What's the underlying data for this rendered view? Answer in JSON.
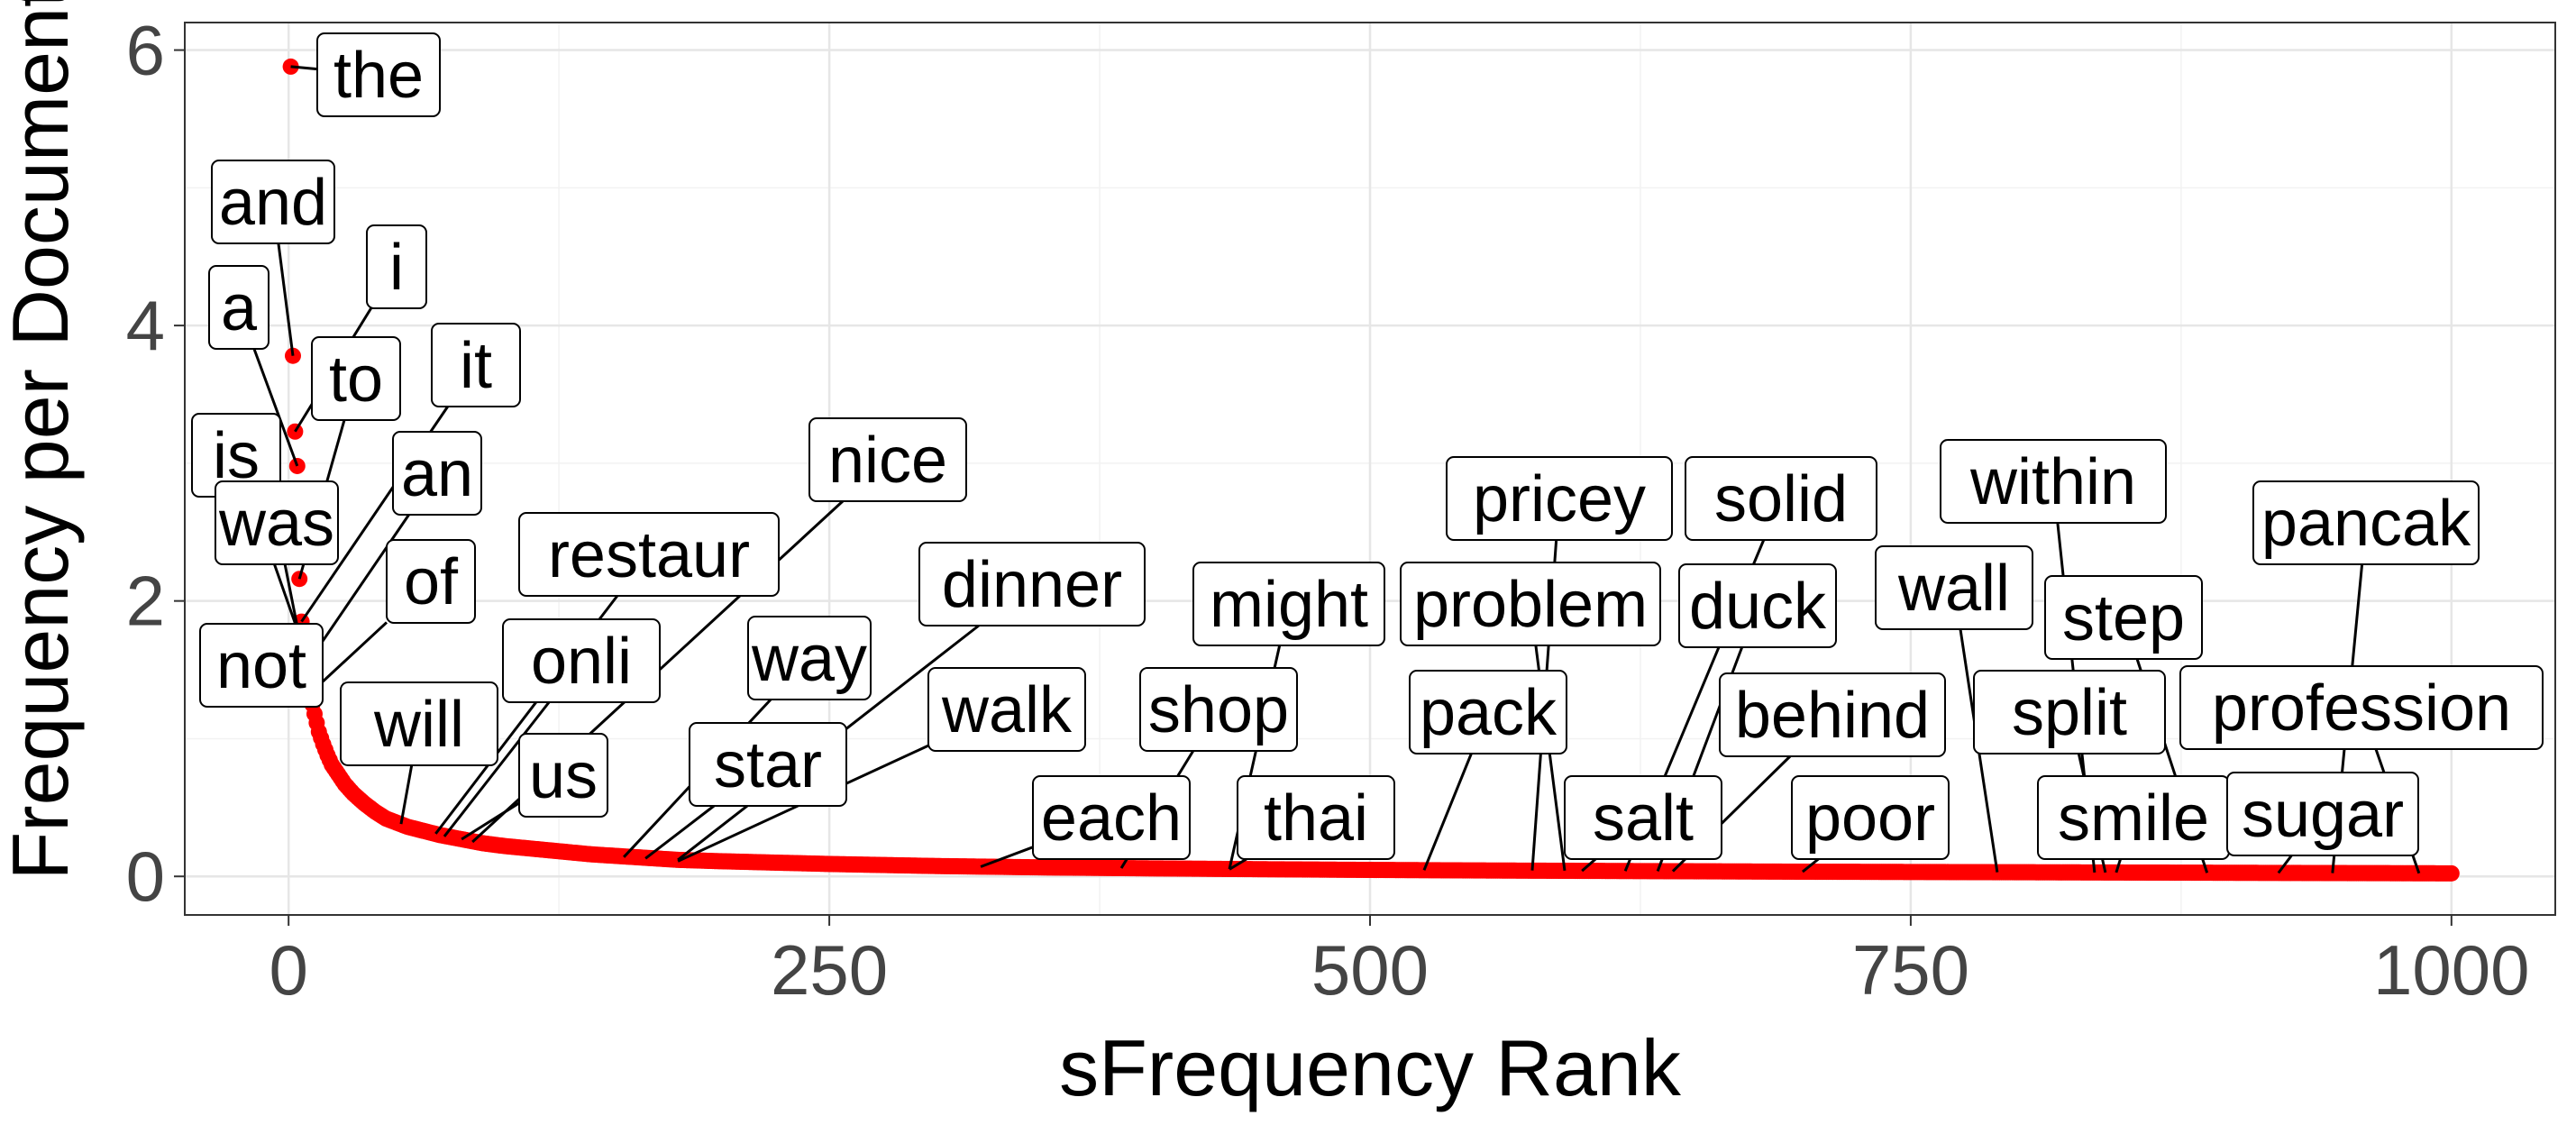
{
  "chart_data": {
    "type": "scatter",
    "xlabel": "sFrequency Rank",
    "ylabel": "Frequency per Document",
    "xlim": [
      -48,
      1048
    ],
    "ylim": [
      -0.28,
      6.2
    ],
    "x_ticks": [
      0,
      250,
      500,
      750,
      1000
    ],
    "y_ticks": [
      0,
      2,
      4,
      6
    ],
    "grid": true,
    "point_color": "#ff0000",
    "curve": [
      [
        1,
        5.88
      ],
      [
        2,
        3.78
      ],
      [
        3,
        3.23
      ],
      [
        4,
        2.98
      ],
      [
        5,
        2.16
      ],
      [
        6,
        1.85
      ],
      [
        7,
        1.66
      ],
      [
        8,
        1.53
      ],
      [
        9,
        1.42
      ],
      [
        10,
        1.33
      ],
      [
        11,
        1.25
      ],
      [
        12,
        1.18
      ],
      [
        14,
        1.05
      ],
      [
        16,
        0.96
      ],
      [
        18,
        0.88
      ],
      [
        20,
        0.81
      ],
      [
        23,
        0.74
      ],
      [
        26,
        0.67
      ],
      [
        30,
        0.6
      ],
      [
        35,
        0.53
      ],
      [
        40,
        0.47
      ],
      [
        45,
        0.42
      ],
      [
        50,
        0.39
      ],
      [
        55,
        0.36
      ],
      [
        60,
        0.34
      ],
      [
        70,
        0.3
      ],
      [
        80,
        0.27
      ],
      [
        90,
        0.24
      ],
      [
        100,
        0.22
      ],
      [
        120,
        0.19
      ],
      [
        140,
        0.16
      ],
      [
        160,
        0.14
      ],
      [
        180,
        0.12
      ],
      [
        200,
        0.11
      ],
      [
        250,
        0.09
      ],
      [
        300,
        0.075
      ],
      [
        350,
        0.065
      ],
      [
        400,
        0.058
      ],
      [
        450,
        0.052
      ],
      [
        500,
        0.047
      ],
      [
        550,
        0.043
      ],
      [
        600,
        0.04
      ],
      [
        650,
        0.037
      ],
      [
        700,
        0.034
      ],
      [
        750,
        0.032
      ],
      [
        800,
        0.03
      ],
      [
        850,
        0.028
      ],
      [
        900,
        0.026
      ],
      [
        950,
        0.024
      ],
      [
        1000,
        0.022
      ]
    ],
    "labeled_points": [
      {
        "word": "the",
        "x": 1,
        "y": 5.88
      },
      {
        "word": "and",
        "x": 2,
        "y": 3.78
      },
      {
        "word": "i",
        "x": 3,
        "y": 3.23
      },
      {
        "word": "a",
        "x": 4,
        "y": 2.98
      },
      {
        "word": "to",
        "x": 5,
        "y": 2.16
      },
      {
        "word": "it",
        "x": 6,
        "y": 1.85
      },
      {
        "word": "is",
        "x": 7,
        "y": 1.66
      },
      {
        "word": "an",
        "x": 8,
        "y": 1.53
      },
      {
        "word": "was",
        "x": 9,
        "y": 1.42
      },
      {
        "word": "of",
        "x": 10,
        "y": 1.33
      },
      {
        "word": "not",
        "x": 11,
        "y": 1.25
      },
      {
        "word": "will",
        "x": 52,
        "y": 0.38
      },
      {
        "word": "restaur",
        "x": 68,
        "y": 0.31
      },
      {
        "word": "onli",
        "x": 72,
        "y": 0.29
      },
      {
        "word": "us",
        "x": 80,
        "y": 0.27
      },
      {
        "word": "nice",
        "x": 85,
        "y": 0.25
      },
      {
        "word": "way",
        "x": 155,
        "y": 0.14
      },
      {
        "word": "star",
        "x": 165,
        "y": 0.13
      },
      {
        "word": "dinner",
        "x": 180,
        "y": 0.12
      },
      {
        "word": "walk",
        "x": 180,
        "y": 0.11
      },
      {
        "word": "each",
        "x": 320,
        "y": 0.07
      },
      {
        "word": "shop",
        "x": 385,
        "y": 0.06
      },
      {
        "word": "might",
        "x": 435,
        "y": 0.053
      },
      {
        "word": "thai",
        "x": 435,
        "y": 0.052
      },
      {
        "word": "pack",
        "x": 525,
        "y": 0.045
      },
      {
        "word": "pricey",
        "x": 575,
        "y": 0.043
      },
      {
        "word": "problem",
        "x": 590,
        "y": 0.042
      },
      {
        "word": "salt",
        "x": 598,
        "y": 0.04
      },
      {
        "word": "solid",
        "x": 618,
        "y": 0.039
      },
      {
        "word": "duck",
        "x": 633,
        "y": 0.038
      },
      {
        "word": "behind",
        "x": 640,
        "y": 0.037
      },
      {
        "word": "poor",
        "x": 700,
        "y": 0.034
      },
      {
        "word": "wall",
        "x": 790,
        "y": 0.03
      },
      {
        "word": "within",
        "x": 835,
        "y": 0.028
      },
      {
        "word": "split",
        "x": 840,
        "y": 0.028
      },
      {
        "word": "smile",
        "x": 845,
        "y": 0.028
      },
      {
        "word": "step",
        "x": 887,
        "y": 0.026
      },
      {
        "word": "sugar",
        "x": 920,
        "y": 0.025
      },
      {
        "word": "pancak",
        "x": 945,
        "y": 0.024
      },
      {
        "word": "profession",
        "x": 985,
        "y": 0.023
      }
    ]
  },
  "ui": {
    "xlabel": "sFrequency Rank",
    "ylabel": "Frequency per Document"
  }
}
